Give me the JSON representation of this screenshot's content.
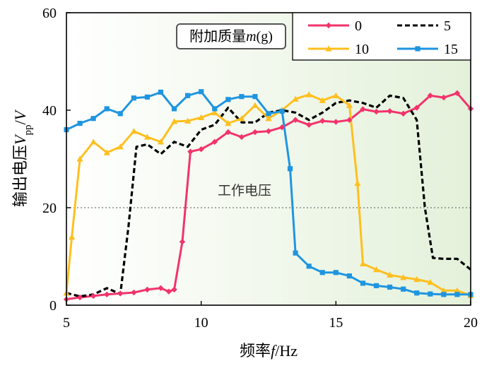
{
  "chart_data": {
    "type": "line",
    "xlabel": "频率f/Hz",
    "ylabel": "输出电压V_pp/V",
    "xlim": [
      5,
      20
    ],
    "ylim": [
      0,
      60
    ],
    "xticks": [
      5,
      10,
      15,
      20
    ],
    "yticks": [
      0,
      20,
      40,
      60
    ],
    "grid": false,
    "background": "light-green gradient",
    "legend": {
      "title": "附加质量m(g)",
      "placement": "top-right",
      "columns": 2
    },
    "reference_line": {
      "y": 20,
      "label": "工作电压",
      "style": "dotted"
    },
    "series": [
      {
        "name": "0",
        "color": "#f2336b",
        "line_style": "solid",
        "marker": "diamond",
        "points": [
          [
            5,
            1.2
          ],
          [
            5.5,
            1.6
          ],
          [
            6,
            1.9
          ],
          [
            6.5,
            2.2
          ],
          [
            7,
            2.4
          ],
          [
            7.5,
            2.6
          ],
          [
            8,
            3.2
          ],
          [
            8.5,
            3.5
          ],
          [
            8.8,
            2.8
          ],
          [
            9,
            3.2
          ],
          [
            9.3,
            13
          ],
          [
            9.6,
            31.5
          ],
          [
            10,
            32
          ],
          [
            10.5,
            33.5
          ],
          [
            11,
            35.5
          ],
          [
            11.5,
            34.5
          ],
          [
            12,
            35.5
          ],
          [
            12.5,
            35.7
          ],
          [
            13,
            36.5
          ],
          [
            13.5,
            38
          ],
          [
            14,
            37
          ],
          [
            14.5,
            37.8
          ],
          [
            15,
            37.6
          ],
          [
            15.5,
            38
          ],
          [
            16,
            40.2
          ],
          [
            16.5,
            39.7
          ],
          [
            17,
            39.8
          ],
          [
            17.5,
            39.3
          ],
          [
            18,
            40.5
          ],
          [
            18.5,
            43
          ],
          [
            19,
            42.6
          ],
          [
            19.5,
            43.5
          ],
          [
            20,
            40.3
          ]
        ]
      },
      {
        "name": "5",
        "color": "#000000",
        "line_style": "dashed",
        "marker": "none",
        "points": [
          [
            5,
            2.5
          ],
          [
            5.5,
            1.8
          ],
          [
            6,
            2.2
          ],
          [
            6.5,
            3.5
          ],
          [
            7,
            2.3
          ],
          [
            7.3,
            16
          ],
          [
            7.6,
            32.5
          ],
          [
            8,
            33
          ],
          [
            8.5,
            31
          ],
          [
            9,
            33.5
          ],
          [
            9.5,
            32.5
          ],
          [
            10,
            36
          ],
          [
            10.5,
            37
          ],
          [
            11,
            40.5
          ],
          [
            11.5,
            37.5
          ],
          [
            12,
            37.5
          ],
          [
            12.5,
            39.5
          ],
          [
            13,
            40
          ],
          [
            13.5,
            39.5
          ],
          [
            14,
            38
          ],
          [
            14.5,
            39.5
          ],
          [
            15,
            41.5
          ],
          [
            15.5,
            42
          ],
          [
            16,
            41.5
          ],
          [
            16.5,
            40.5
          ],
          [
            17,
            43
          ],
          [
            17.5,
            42.5
          ],
          [
            18,
            38
          ],
          [
            18.3,
            20
          ],
          [
            18.6,
            9.7
          ],
          [
            19,
            9.5
          ],
          [
            19.5,
            9.5
          ],
          [
            20,
            7.3
          ]
        ]
      },
      {
        "name": "10",
        "color": "#ffbf1f",
        "line_style": "solid",
        "marker": "triangle",
        "points": [
          [
            5,
            2.5
          ],
          [
            5.2,
            14
          ],
          [
            5.5,
            30
          ],
          [
            6,
            33.5
          ],
          [
            6.5,
            31.3
          ],
          [
            7,
            32.5
          ],
          [
            7.5,
            35.7
          ],
          [
            8,
            34.5
          ],
          [
            8.5,
            33.5
          ],
          [
            9,
            37.7
          ],
          [
            9.5,
            37.8
          ],
          [
            10,
            38.5
          ],
          [
            10.5,
            39.5
          ],
          [
            11,
            37.3
          ],
          [
            11.5,
            38.3
          ],
          [
            12,
            41
          ],
          [
            12.5,
            38.3
          ],
          [
            13,
            40
          ],
          [
            13.5,
            42.3
          ],
          [
            14,
            43.2
          ],
          [
            14.5,
            42
          ],
          [
            15,
            43
          ],
          [
            15.5,
            41
          ],
          [
            15.8,
            25
          ],
          [
            16,
            8.5
          ],
          [
            16.5,
            7.3
          ],
          [
            17,
            6.2
          ],
          [
            17.5,
            5.7
          ],
          [
            18,
            5.3
          ],
          [
            18.5,
            4.7
          ],
          [
            19,
            3
          ],
          [
            19.5,
            3
          ],
          [
            20,
            2
          ]
        ]
      },
      {
        "name": "15",
        "color": "#1f95e0",
        "line_style": "solid",
        "marker": "square",
        "points": [
          [
            5,
            36
          ],
          [
            5.5,
            37.3
          ],
          [
            6,
            38.3
          ],
          [
            6.5,
            40.3
          ],
          [
            7,
            39.3
          ],
          [
            7.5,
            42.5
          ],
          [
            8,
            42.7
          ],
          [
            8.5,
            43.7
          ],
          [
            9,
            40.3
          ],
          [
            9.5,
            43
          ],
          [
            10,
            43.8
          ],
          [
            10.5,
            40.3
          ],
          [
            11,
            42.2
          ],
          [
            11.5,
            42.8
          ],
          [
            12,
            42.8
          ],
          [
            12.5,
            39.3
          ],
          [
            13,
            39.8
          ],
          [
            13.3,
            28
          ],
          [
            13.5,
            10.7
          ],
          [
            14,
            8
          ],
          [
            14.5,
            6.7
          ],
          [
            15,
            6.7
          ],
          [
            15.5,
            6
          ],
          [
            16,
            4.5
          ],
          [
            16.5,
            4
          ],
          [
            17,
            3.7
          ],
          [
            17.5,
            3.3
          ],
          [
            18,
            2.5
          ],
          [
            18.5,
            2.3
          ],
          [
            19,
            2.2
          ],
          [
            19.5,
            2.2
          ],
          [
            20,
            2.2
          ]
        ]
      }
    ]
  }
}
